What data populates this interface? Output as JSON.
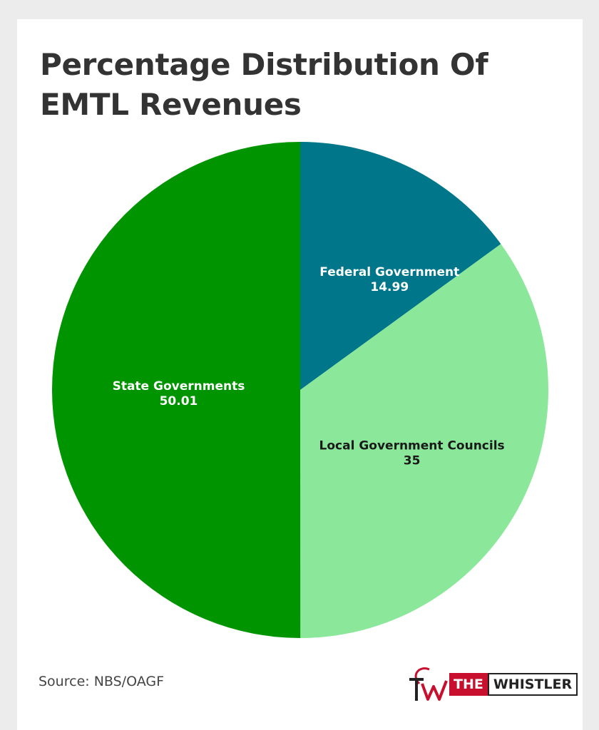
{
  "title": "Percentage Distribution Of EMTL Revenues",
  "source": "Source: NBS/OAGF",
  "logo": {
    "the": "THE",
    "whistler": "WHISTLER",
    "mark_letters": "TW"
  },
  "colors": {
    "state": "#009400",
    "local": "#8be89a",
    "federal": "#00768a",
    "text_light": "#ffffff",
    "text_dark": "#1a1a1a",
    "brand_red": "#c8102e"
  },
  "chart_data": {
    "type": "pie",
    "title": "Percentage Distribution Of EMTL Revenues",
    "start_angle": "12 o'clock, clockwise",
    "slices": [
      {
        "label": "Federal Government",
        "value": 14.99,
        "value_text": "14.99",
        "color": "#00768a",
        "label_color": "#ffffff"
      },
      {
        "label": "Local Government Councils",
        "value": 35,
        "value_text": "35",
        "color": "#8be89a",
        "label_color": "#1a1a1a"
      },
      {
        "label": "State Governments",
        "value": 50.01,
        "value_text": "50.01",
        "color": "#009400",
        "label_color": "#ffffff"
      }
    ]
  }
}
